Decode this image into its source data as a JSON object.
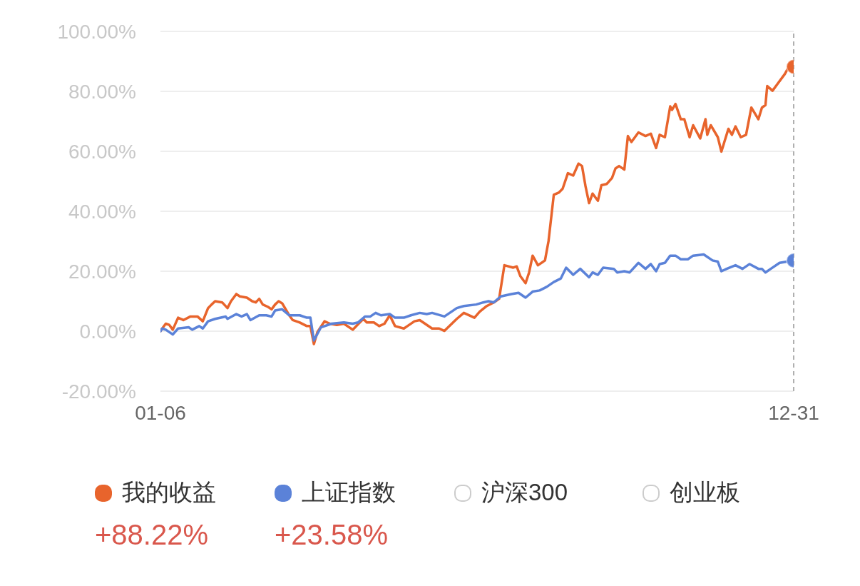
{
  "chart_data": {
    "type": "line",
    "xlim": [
      "--01-06",
      "--12-31"
    ],
    "xticks": [
      {
        "value": "--01-06",
        "label": "01-06"
      },
      {
        "value": "--12-31",
        "label": "12-31"
      }
    ],
    "ylim": [
      -20,
      100
    ],
    "yticks": [
      {
        "value": -20,
        "label": "-20.00%"
      },
      {
        "value": 0,
        "label": "0.00%"
      },
      {
        "value": 20,
        "label": "20.00%"
      },
      {
        "value": 40,
        "label": "40.00%"
      },
      {
        "value": 60,
        "label": "60.00%"
      },
      {
        "value": 80,
        "label": "80.00%"
      },
      {
        "value": 100,
        "label": "100.00%"
      }
    ],
    "grid": "y",
    "legend": "bottom",
    "line_style": "solid",
    "ref_lines": [
      {
        "axis": "x",
        "value": "--12-31",
        "label": null,
        "color": "#b0b0b0",
        "line_style": "dashed"
      }
    ],
    "annotations": [
      "+88.22%",
      "+23.58%"
    ],
    "series": [
      {
        "name": "我的收益",
        "color": "#e8642c",
        "x": [
          "--01-06",
          "--01-07",
          "--01-09",
          "--01-11",
          "--01-13",
          "--01-16",
          "--01-19",
          "--01-23",
          "--01-27",
          "--01-30",
          "--02-02",
          "--02-04",
          "--02-06",
          "--02-10",
          "--02-13",
          "--02-15",
          "--02-18",
          "--02-20",
          "--02-24",
          "--02-27",
          "--03-01",
          "--03-03",
          "--03-05",
          "--03-08",
          "--03-10",
          "--03-12",
          "--03-14",
          "--03-16",
          "--03-20",
          "--03-22",
          "--03-26",
          "--03-30",
          "--04-01",
          "--04-03",
          "--04-05",
          "--04-09",
          "--04-12",
          "--04-16",
          "--04-20",
          "--04-25",
          "--05-01",
          "--05-03",
          "--05-07",
          "--05-10",
          "--05-13",
          "--05-16",
          "--05-19",
          "--05-24",
          "--05-26",
          "--05-30",
          "--06-02",
          "--06-05",
          "--06-09",
          "--06-13",
          "--06-16",
          "--06-23",
          "--06-27",
          "--07-03",
          "--07-06",
          "--07-10",
          "--07-14",
          "--07-17",
          "--07-20",
          "--07-25",
          "--07-27",
          "--07-29",
          "--08-01",
          "--08-03",
          "--08-05",
          "--08-08",
          "--08-12",
          "--08-14",
          "--08-17",
          "--08-20",
          "--08-22",
          "--08-25",
          "--08-28",
          "--08-31",
          "--09-02",
          "--09-04",
          "--09-06",
          "--09-08",
          "--09-11",
          "--09-13",
          "--09-16",
          "--09-19",
          "--09-21",
          "--09-23",
          "--09-26",
          "--09-28",
          "--09-30",
          "--10-04",
          "--10-08",
          "--10-11",
          "--10-14",
          "--10-16",
          "--10-19",
          "--10-22",
          "--10-23",
          "--10-25",
          "--10-28",
          "--10-30",
          "--11-02",
          "--11-04",
          "--11-08",
          "--11-11",
          "--11-12",
          "--11-14",
          "--11-18",
          "--11-20",
          "--11-24",
          "--11-26",
          "--11-28",
          "--12-01",
          "--12-04",
          "--12-07",
          "--12-11",
          "--12-13",
          "--12-15",
          "--12-16",
          "--12-19",
          "--12-22",
          "--12-26",
          "--12-29",
          "--12-31"
        ],
        "values": [
          0,
          0.9,
          2.5,
          2.1,
          0.5,
          4.5,
          3.7,
          4.9,
          4.9,
          3.3,
          7.7,
          8.9,
          10.0,
          9.6,
          7.7,
          10.0,
          12.4,
          11.6,
          11.2,
          10.0,
          9.6,
          10.8,
          8.9,
          8.1,
          7.3,
          8.9,
          10.0,
          9.3,
          5.3,
          3.7,
          2.9,
          1.7,
          1.7,
          -4.3,
          -0.3,
          3.3,
          2.5,
          2.1,
          2.5,
          0.5,
          4.1,
          2.9,
          2.9,
          1.7,
          2.5,
          5.3,
          1.7,
          0.9,
          1.7,
          3.3,
          3.7,
          2.5,
          0.9,
          0.9,
          0.1,
          4.1,
          6.1,
          4.5,
          6.5,
          8.4,
          9.6,
          10.8,
          22.0,
          21.2,
          21.6,
          18.4,
          16.0,
          19.6,
          25.2,
          22.0,
          23.6,
          30.0,
          45.5,
          46.3,
          47.5,
          52.7,
          51.9,
          55.9,
          55.1,
          48.3,
          42.7,
          45.9,
          43.5,
          48.7,
          49.1,
          51.1,
          54.3,
          55.1,
          53.9,
          65.1,
          63.1,
          66.3,
          65.1,
          65.9,
          61.1,
          65.5,
          64.7,
          75.0,
          73.8,
          75.8,
          70.7,
          70.7,
          64.7,
          68.7,
          64.3,
          70.7,
          65.5,
          68.7,
          64.7,
          59.9,
          67.5,
          65.5,
          68.3,
          64.7,
          65.5,
          74.6,
          70.7,
          74.6,
          75.4,
          81.8,
          80.2,
          82.6,
          85.8,
          89.0,
          88.22
        ]
      },
      {
        "name": "上证指数",
        "color": "#5b82d8",
        "x": [
          "--01-06",
          "--01-07",
          "--01-09",
          "--01-13",
          "--01-16",
          "--01-22",
          "--01-24",
          "--01-28",
          "--01-30",
          "--02-02",
          "--02-06",
          "--02-12",
          "--02-13",
          "--02-18",
          "--02-21",
          "--02-24",
          "--02-26",
          "--03-03",
          "--03-07",
          "--03-10",
          "--03-12",
          "--03-16",
          "--03-20",
          "--03-26",
          "--03-30",
          "--04-01",
          "--04-03",
          "--04-07",
          "--04-13",
          "--04-20",
          "--04-25",
          "--04-28",
          "--05-02",
          "--05-05",
          "--05-08",
          "--05-11",
          "--05-16",
          "--05-19",
          "--05-24",
          "--05-28",
          "--06-02",
          "--06-06",
          "--06-09",
          "--06-16",
          "--06-23",
          "--06-27",
          "--07-04",
          "--07-08",
          "--07-11",
          "--07-14",
          "--07-18",
          "--07-24",
          "--07-28",
          "--08-01",
          "--08-05",
          "--08-09",
          "--08-13",
          "--08-17",
          "--08-21",
          "--08-24",
          "--08-28",
          "--09-01",
          "--09-06",
          "--09-08",
          "--09-11",
          "--09-14",
          "--09-20",
          "--09-22",
          "--09-26",
          "--09-29",
          "--10-04",
          "--10-08",
          "--10-11",
          "--10-14",
          "--10-16",
          "--10-19",
          "--10-22",
          "--10-25",
          "--10-28",
          "--11-01",
          "--11-04",
          "--11-10",
          "--11-15",
          "--11-18",
          "--11-20",
          "--11-23",
          "--11-28",
          "--12-02",
          "--12-06",
          "--12-11",
          "--12-13",
          "--12-15",
          "--12-18",
          "--12-23",
          "--12-31"
        ],
        "values": [
          0,
          0.9,
          0.5,
          -1.1,
          0.9,
          1.3,
          0.5,
          1.7,
          0.9,
          3.3,
          4.1,
          4.9,
          4.1,
          5.7,
          4.9,
          5.7,
          3.7,
          5.3,
          5.3,
          4.9,
          6.9,
          7.3,
          5.3,
          5.3,
          4.5,
          4.5,
          -3.1,
          1.3,
          2.5,
          2.9,
          2.5,
          2.9,
          4.9,
          4.9,
          6.1,
          5.3,
          5.7,
          4.5,
          4.5,
          5.3,
          6.1,
          5.7,
          6.1,
          4.9,
          7.7,
          8.4,
          8.9,
          9.6,
          10.0,
          9.6,
          11.6,
          12.4,
          12.8,
          11.2,
          13.2,
          13.6,
          14.8,
          16.4,
          17.6,
          21.2,
          18.8,
          20.8,
          18.0,
          19.6,
          18.8,
          21.2,
          20.8,
          19.6,
          20.0,
          19.6,
          22.8,
          20.8,
          22.4,
          20.0,
          22.4,
          22.8,
          25.2,
          25.2,
          24.0,
          24.0,
          25.2,
          25.6,
          23.6,
          23.2,
          20.0,
          20.8,
          22.0,
          20.8,
          22.4,
          20.8,
          20.8,
          19.6,
          20.8,
          22.8,
          23.58
        ]
      },
      {
        "name": "沪深300",
        "color": "#cccccc"
      },
      {
        "name": "创业板",
        "color": "#cccccc"
      }
    ]
  }
}
